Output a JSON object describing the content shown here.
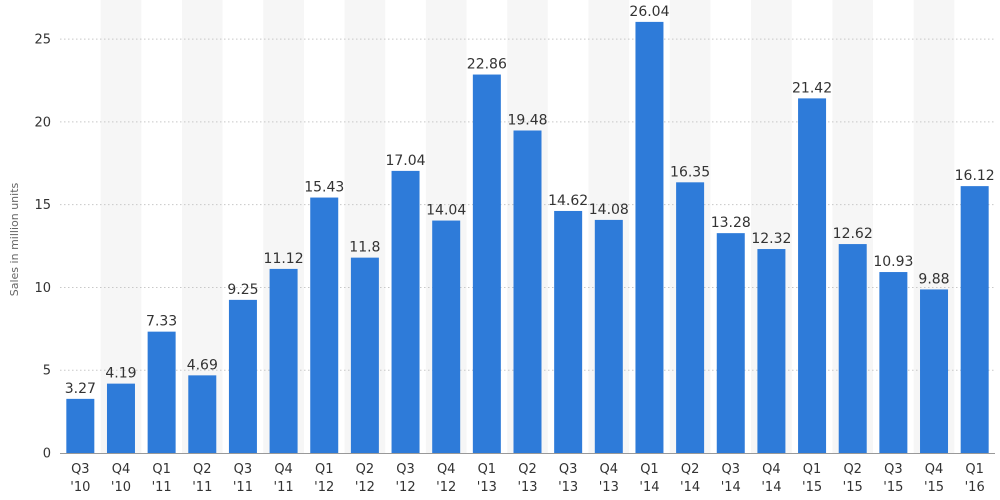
{
  "chart_data": {
    "type": "bar",
    "categories": [
      [
        "Q3",
        "'10"
      ],
      [
        "Q4",
        "'10"
      ],
      [
        "Q1",
        "'11"
      ],
      [
        "Q2",
        "'11"
      ],
      [
        "Q3",
        "'11"
      ],
      [
        "Q4",
        "'11"
      ],
      [
        "Q1",
        "'12"
      ],
      [
        "Q2",
        "'12"
      ],
      [
        "Q3",
        "'12"
      ],
      [
        "Q4",
        "'12"
      ],
      [
        "Q1",
        "'13"
      ],
      [
        "Q2",
        "'13"
      ],
      [
        "Q3",
        "'13"
      ],
      [
        "Q4",
        "'13"
      ],
      [
        "Q1",
        "'14"
      ],
      [
        "Q2",
        "'14"
      ],
      [
        "Q3",
        "'14"
      ],
      [
        "Q4",
        "'14"
      ],
      [
        "Q1",
        "'15"
      ],
      [
        "Q2",
        "'15"
      ],
      [
        "Q3",
        "'15"
      ],
      [
        "Q4",
        "'15"
      ],
      [
        "Q1",
        "'16"
      ]
    ],
    "values": [
      3.27,
      4.19,
      7.33,
      4.69,
      9.25,
      11.12,
      15.43,
      11.8,
      17.04,
      14.04,
      22.86,
      19.48,
      14.62,
      14.08,
      26.04,
      16.35,
      13.28,
      12.32,
      21.42,
      12.62,
      10.93,
      9.88,
      16.12
    ],
    "value_labels": [
      "3.27",
      "4.19",
      "7.33",
      "4.69",
      "9.25",
      "11.12",
      "15.43",
      "11.8",
      "17.04",
      "14.04",
      "22.86",
      "19.48",
      "14.62",
      "14.08",
      "26.04",
      "16.35",
      "13.28",
      "12.32",
      "21.42",
      "12.62",
      "10.93",
      "9.88",
      "16.12"
    ],
    "ylabel": "Sales in million units",
    "ylim": [
      0,
      27
    ],
    "yticks": [
      0,
      5,
      10,
      15,
      20,
      25
    ],
    "grid": true,
    "bar_color": "#2e7bd9",
    "band_color": "#f6f6f6"
  }
}
